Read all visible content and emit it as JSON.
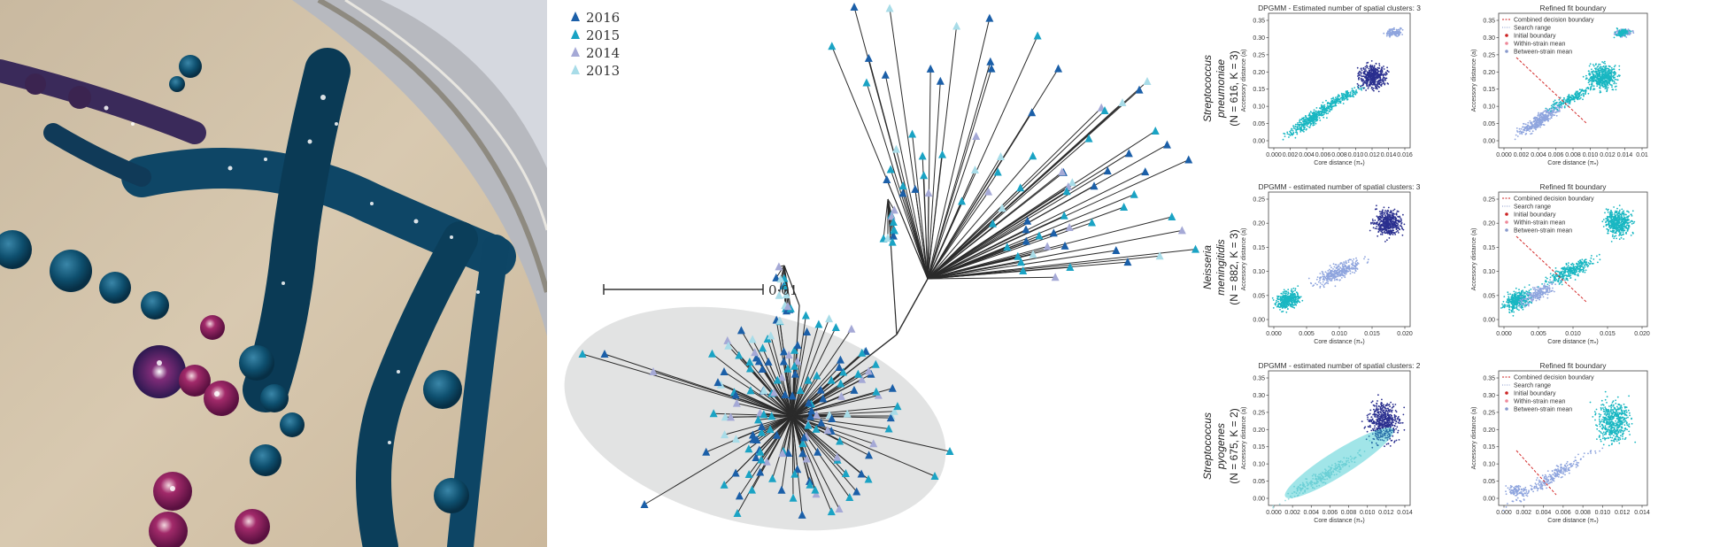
{
  "photo": {},
  "tree": {
    "legend": [
      {
        "label": "2016",
        "color": "#1b5fa8"
      },
      {
        "label": "2015",
        "color": "#1aa3c4"
      },
      {
        "label": "2014",
        "color": "#a5a9d6"
      },
      {
        "label": "2013",
        "color": "#a8dce8"
      }
    ],
    "scale_label": "0·01"
  },
  "plots": {
    "species": [
      {
        "line1": "Streptococcus",
        "line2": "pneumoniae",
        "line3": "(N = 616, K = 3)"
      },
      {
        "line1": "Neisseria",
        "line2": "meningitidis",
        "line3": "(N = 882, K = 3)"
      },
      {
        "line1": "Streptococcus",
        "line2": "pyogenes",
        "line3": "(N = 675, K = 2)"
      }
    ],
    "left_titles": [
      "DPGMM - Estimated number of spatial clusters: 3",
      "DPGMM - estimated number of spatial clusters: 3",
      "DPGMM - estimated number of spatial clusters: 2"
    ],
    "right_title": "Refined fit boundary",
    "xlabel": "Core distance (πₙ)",
    "ylabel": "Accessory distance (a)",
    "legend_items": [
      "Combined decision boundary",
      "Search range",
      "Initial boundary",
      "Within-strain mean",
      "Between-strain mean"
    ],
    "legend_colors": [
      "#cc2222",
      "#8899cc",
      "#cc2222",
      "#ee8899",
      "#8899cc"
    ],
    "rows": [
      {
        "yticks": [
          "0.35",
          "0.30",
          "0.25",
          "0.20",
          "0.15",
          "0.10",
          "0.05",
          "0.00"
        ],
        "xticks_left": [
          "0.000",
          "0.002",
          "0.004",
          "0.006",
          "0.008",
          "0.010",
          "0.012",
          "0.014",
          "0.016"
        ],
        "xticks_right": [
          "0.000",
          "0.002",
          "0.004",
          "0.006",
          "0.008",
          "0.010",
          "0.012",
          "0.014",
          "0.01"
        ]
      },
      {
        "yticks": [
          "0.25",
          "0.20",
          "0.15",
          "0.10",
          "0.05",
          "0.00"
        ],
        "xticks_left": [
          "0.000",
          "0.005",
          "0.010",
          "0.015",
          "0.020"
        ],
        "xticks_right": [
          "0.000",
          "0.005",
          "0.010",
          "0.015",
          "0.020"
        ]
      },
      {
        "yticks": [
          "0.35",
          "0.30",
          "0.25",
          "0.20",
          "0.15",
          "0.10",
          "0.05",
          "0.00"
        ],
        "xticks_left": [
          "0.000",
          "0.002",
          "0.004",
          "0.006",
          "0.008",
          "0.010",
          "0.012",
          "0.014"
        ],
        "xticks_right": [
          "0.000",
          "0.002",
          "0.004",
          "0.006",
          "0.008",
          "0.010",
          "0.012",
          "0.014"
        ]
      }
    ]
  }
}
